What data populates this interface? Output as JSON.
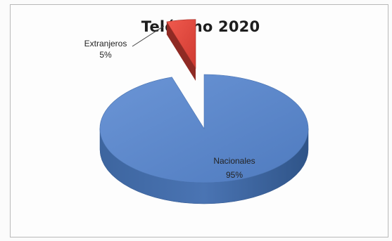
{
  "chart_data": {
    "type": "pie",
    "title": "Teléfono 2020",
    "categories": [
      "Nacionales",
      "Extranjeros"
    ],
    "values": [
      95,
      5
    ],
    "labels": [
      {
        "category": "Nacionales",
        "percent": "95%"
      },
      {
        "category": "Extranjeros",
        "percent": "5%"
      }
    ],
    "colors": {
      "Nacionales": "#5b87c9",
      "Extranjeros": "#e0473e"
    },
    "three_d": true,
    "exploded": "Extranjeros",
    "legend": "none"
  }
}
